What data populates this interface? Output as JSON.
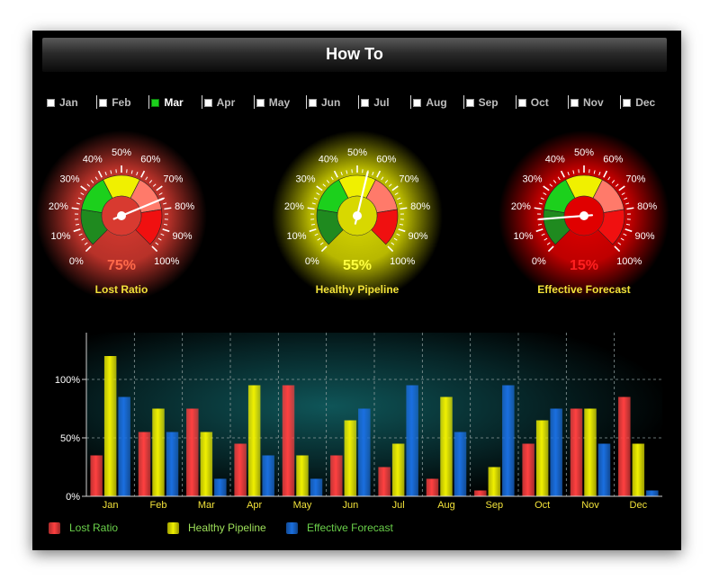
{
  "title": "How To",
  "months": [
    "Jan",
    "Feb",
    "Mar",
    "Apr",
    "May",
    "Jun",
    "Jul",
    "Aug",
    "Sep",
    "Oct",
    "Nov",
    "Dec"
  ],
  "selected_month": "Mar",
  "colors": {
    "label_yellow": "#f2e23a",
    "lost_ratio": "#ff4040",
    "healthy_pipeline": "#f0f000",
    "effective_forecast": "#1a6fe0"
  },
  "gauges": [
    {
      "title": "Lost Ratio",
      "value": 75,
      "value_label": "75%",
      "value_color": "#ff6a4a",
      "glow": "#d83a30"
    },
    {
      "title": "Healthy Pipeline",
      "value": 55,
      "value_label": "55%",
      "value_color": "#ffff40",
      "glow": "#d8d800"
    },
    {
      "title": "Effective Forecast",
      "value": 15,
      "value_label": "15%",
      "value_color": "#ff2020",
      "glow": "#e00000"
    }
  ],
  "gauge_ticks": [
    "0%",
    "10%",
    "20%",
    "30%",
    "40%",
    "50%",
    "60%",
    "70%",
    "80%",
    "90%",
    "100%"
  ],
  "chart_data": {
    "type": "bar",
    "categories": [
      "Jan",
      "Feb",
      "Mar",
      "Apr",
      "May",
      "Jun",
      "Jul",
      "Aug",
      "Sep",
      "Oct",
      "Nov",
      "Dec"
    ],
    "series": [
      {
        "name": "Lost Ratio",
        "values": [
          35,
          55,
          75,
          45,
          95,
          35,
          25,
          15,
          5,
          45,
          75,
          85
        ]
      },
      {
        "name": "Healthy Pipeline",
        "values": [
          120,
          75,
          55,
          95,
          35,
          65,
          45,
          85,
          25,
          65,
          75,
          45
        ]
      },
      {
        "name": "Effective Forecast",
        "values": [
          85,
          55,
          15,
          35,
          15,
          75,
          95,
          55,
          95,
          75,
          45,
          5
        ]
      }
    ],
    "ytick_labels": [
      "0%",
      "50%",
      "100%"
    ],
    "ylim": [
      0,
      140
    ],
    "grid": true,
    "legend": "bottom-left"
  }
}
